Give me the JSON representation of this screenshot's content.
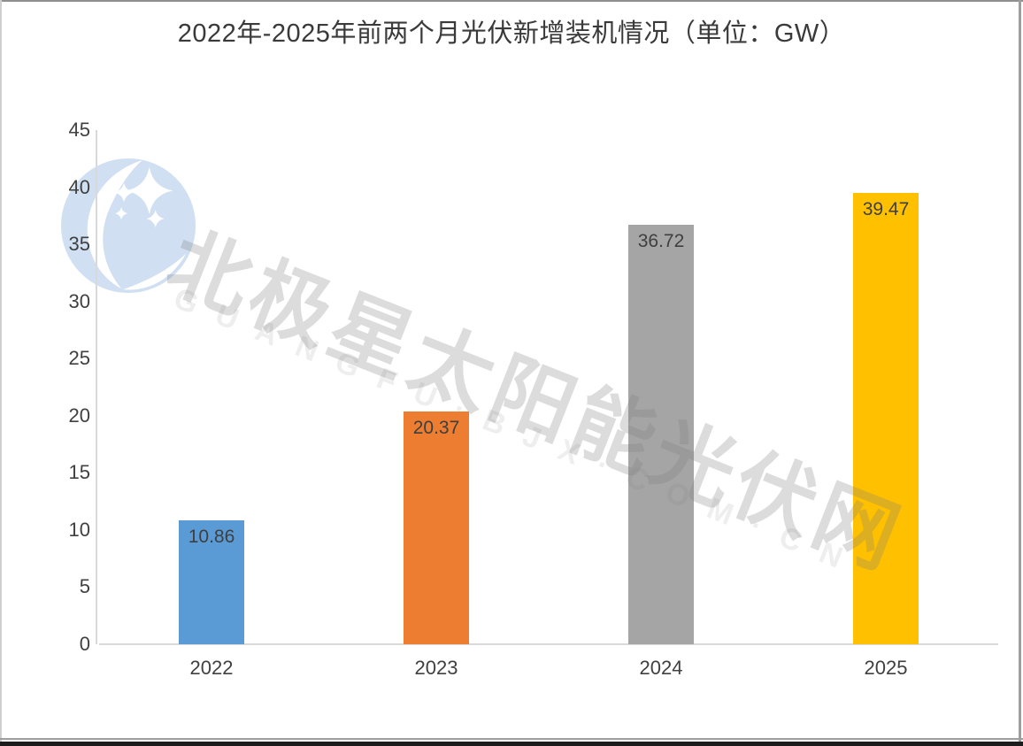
{
  "page": {
    "title": "2022年-2025年前两个月光伏新增装机情况（单位：GW）"
  },
  "chart_data": {
    "type": "bar",
    "title": "2022年-2025年前两个月光伏新增装机情况（单位：GW）",
    "unit": "GW",
    "categories": [
      "2022",
      "2023",
      "2024",
      "2025"
    ],
    "values": [
      10.86,
      20.37,
      36.72,
      39.47
    ],
    "value_labels": [
      "10.86",
      "20.37",
      "36.72",
      "39.47"
    ],
    "bar_colors": [
      "#5B9BD5",
      "#ED7D31",
      "#A5A5A5",
      "#FFC000"
    ],
    "xlabel": "",
    "ylabel": "",
    "ylim": [
      0,
      45
    ],
    "ytick_step": 5,
    "ytick_labels": [
      "0",
      "5",
      "10",
      "15",
      "20",
      "25",
      "30",
      "35",
      "40",
      "45"
    ],
    "grid": false,
    "legend": "none",
    "axis_color": "#D9D9D9",
    "label_color": "#404040"
  },
  "watermark": {
    "cn_text": "北极星太阳能光伏网",
    "latin_text": "GUANGFU·BJX·COM·CN",
    "logo": "bjx-moon-stars-logo",
    "logo_color": "#D0E0F2"
  }
}
